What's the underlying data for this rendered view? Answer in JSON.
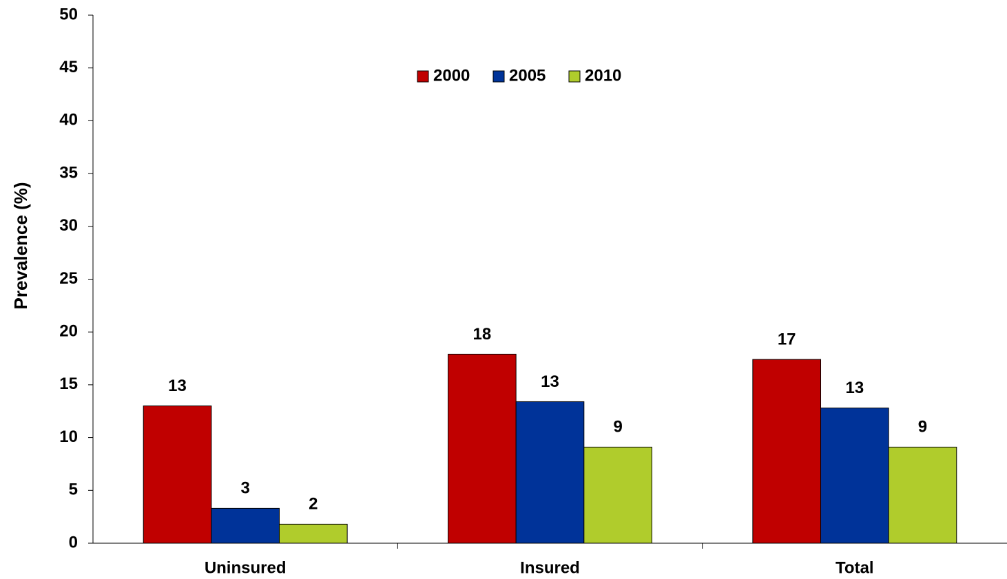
{
  "chart_data": {
    "type": "bar",
    "y_label": "Prevalence (%)",
    "categories": [
      "Uninsured",
      "Insured",
      "Total"
    ],
    "series": [
      {
        "name": "2000",
        "color": "#c00000",
        "values": [
          13.0,
          17.9,
          17.4
        ],
        "value_labels": [
          "13",
          "18",
          "17"
        ]
      },
      {
        "name": "2005",
        "color": "#003399",
        "values": [
          3.3,
          13.4,
          12.8
        ],
        "value_labels": [
          "3",
          "13",
          "13"
        ]
      },
      {
        "name": "2010",
        "color": "#b0cc2c",
        "values": [
          1.8,
          9.1,
          9.1
        ],
        "value_labels": [
          "2",
          "9",
          "9"
        ]
      }
    ],
    "ylim": [
      0,
      50
    ],
    "yticks": [
      0,
      5,
      10,
      15,
      20,
      25,
      30,
      35,
      40,
      45,
      50
    ],
    "legend": "top-center",
    "grid": false
  }
}
